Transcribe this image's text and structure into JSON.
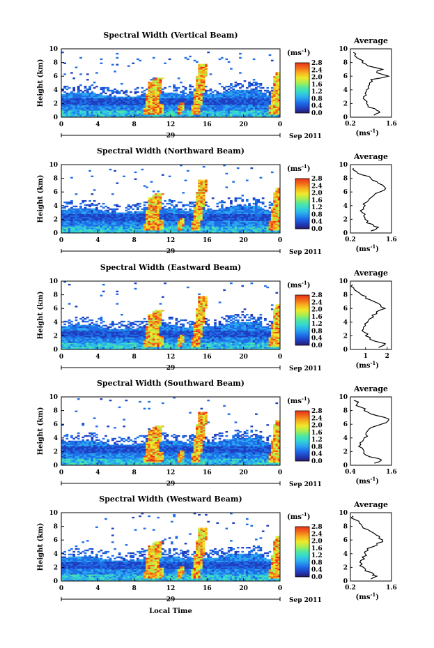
{
  "figure": {
    "xlabel": "Local Time",
    "date_label": "Sep 2011",
    "day_label": "29",
    "time_ticks": [
      "0",
      "4",
      "8",
      "12",
      "16",
      "20",
      "0"
    ],
    "height_ylabel": "Height (km)",
    "height_ticks": [
      "0",
      "2",
      "4",
      "6",
      "8",
      "10"
    ],
    "cbar_unit": "(ms",
    "cbar_unit_sup": "-1",
    "cbar_unit_close": ")",
    "cbar_ticks": [
      "0.0",
      "0.4",
      "0.8",
      "1.2",
      "1.6",
      "2.0",
      "2.4",
      "2.8"
    ],
    "avg_title": "Average",
    "avg_unit": "(ms",
    "avg_unit_sup": "-1",
    "avg_unit_close": ")",
    "colormap": [
      "#2a1a6e",
      "#1f3fc0",
      "#1e6ee8",
      "#2aa7f0",
      "#33d3d6",
      "#4fe8a0",
      "#a8ee52",
      "#f0e82a",
      "#f6b21e",
      "#f36a1a",
      "#e8321a"
    ]
  },
  "chart_data": [
    {
      "type": "heatmap",
      "title": "Spectral Width (Vertical Beam)",
      "x": "local time (h)",
      "xlim": [
        0,
        24
      ],
      "y": "height (km)",
      "ylim": [
        0,
        10
      ],
      "clim": [
        0.0,
        2.8
      ],
      "avg_ticks": [
        "0.2",
        "1.6"
      ],
      "avg_xlim": [
        0.2,
        1.6
      ],
      "profile": {
        "height": [
          0.3,
          0.7,
          1.0,
          1.5,
          2.0,
          2.5,
          3.0,
          3.5,
          4.0,
          4.5,
          5.0,
          5.5,
          6.0,
          6.5,
          7.0,
          7.5,
          8.0,
          8.5,
          9.0,
          9.5
        ],
        "width": [
          1.0,
          1.2,
          1.1,
          0.8,
          0.75,
          0.7,
          0.65,
          0.7,
          0.75,
          0.8,
          0.85,
          0.9,
          1.5,
          1.1,
          1.3,
          0.8,
          0.6,
          0.5,
          0.35,
          0.3
        ]
      }
    },
    {
      "type": "heatmap",
      "title": "Spectral Width (Northward Beam)",
      "x": "local time (h)",
      "xlim": [
        0,
        24
      ],
      "y": "height (km)",
      "ylim": [
        0,
        10
      ],
      "clim": [
        0.0,
        2.8
      ],
      "avg_ticks": [
        "0.2",
        "1.6"
      ],
      "avg_xlim": [
        0.2,
        1.6
      ],
      "profile": {
        "height": [
          0.3,
          0.7,
          1.0,
          1.5,
          2.0,
          2.5,
          3.0,
          3.5,
          4.0,
          4.5,
          5.0,
          5.5,
          6.0,
          6.5,
          7.0,
          7.5,
          8.0,
          8.5,
          9.0,
          9.5
        ],
        "width": [
          0.9,
          1.1,
          1.0,
          0.75,
          0.7,
          0.65,
          0.6,
          0.65,
          0.7,
          0.75,
          0.85,
          1.0,
          1.2,
          1.4,
          1.3,
          1.1,
          0.9,
          0.6,
          0.4,
          0.3
        ]
      }
    },
    {
      "type": "heatmap",
      "title": "Spectral Width (Eastward Beam)",
      "x": "local time (h)",
      "xlim": [
        0,
        24
      ],
      "y": "height (km)",
      "ylim": [
        0,
        10
      ],
      "clim": [
        0.0,
        2.8
      ],
      "avg_ticks": [
        "1",
        "2"
      ],
      "avg_xlim": [
        0.3,
        2.2
      ],
      "profile": {
        "height": [
          0.3,
          0.7,
          1.0,
          1.5,
          2.0,
          2.5,
          3.0,
          3.5,
          4.0,
          4.5,
          5.0,
          5.5,
          6.0,
          6.5,
          7.0,
          7.5,
          8.0,
          8.5,
          9.0,
          9.5
        ],
        "width": [
          1.6,
          1.9,
          1.7,
          1.2,
          1.0,
          0.95,
          0.9,
          1.0,
          1.1,
          1.2,
          1.3,
          1.5,
          1.9,
          1.7,
          1.4,
          1.0,
          0.8,
          0.6,
          0.45,
          0.4
        ]
      }
    },
    {
      "type": "heatmap",
      "title": "Spectral Width (Southward Beam)",
      "x": "local time (h)",
      "xlim": [
        0,
        24
      ],
      "y": "height (km)",
      "ylim": [
        0,
        10
      ],
      "clim": [
        0.0,
        2.8
      ],
      "avg_ticks": [
        "0.4",
        "1.6"
      ],
      "avg_xlim": [
        0.4,
        1.6
      ],
      "profile": {
        "height": [
          0.3,
          0.7,
          1.0,
          1.5,
          2.0,
          2.5,
          3.0,
          3.5,
          4.0,
          4.5,
          5.0,
          5.5,
          6.0,
          6.5,
          7.0,
          7.5,
          8.0,
          8.5,
          9.0,
          9.5
        ],
        "width": [
          1.1,
          1.3,
          1.2,
          0.85,
          0.8,
          0.75,
          0.7,
          0.75,
          0.8,
          0.85,
          0.9,
          1.0,
          1.3,
          1.5,
          1.4,
          1.0,
          0.8,
          0.7,
          0.6,
          0.5
        ]
      }
    },
    {
      "type": "heatmap",
      "title": "Spectral Width (Westward Beam)",
      "x": "local time (h)",
      "xlim": [
        0,
        24
      ],
      "y": "height (km)",
      "ylim": [
        0,
        10
      ],
      "clim": [
        0.0,
        2.8
      ],
      "avg_ticks": [
        "0.2",
        "1.6"
      ],
      "avg_xlim": [
        0.2,
        1.6
      ],
      "profile": {
        "height": [
          0.3,
          0.7,
          1.0,
          1.5,
          2.0,
          2.5,
          3.0,
          3.5,
          4.0,
          4.5,
          5.0,
          5.5,
          6.0,
          6.5,
          7.0,
          7.5,
          8.0,
          8.5,
          9.0,
          9.5
        ],
        "width": [
          0.9,
          1.1,
          1.0,
          0.7,
          0.65,
          0.6,
          0.55,
          0.6,
          0.7,
          0.8,
          0.95,
          1.1,
          1.3,
          1.2,
          1.0,
          0.8,
          0.6,
          0.5,
          0.35,
          0.3
        ]
      }
    }
  ]
}
